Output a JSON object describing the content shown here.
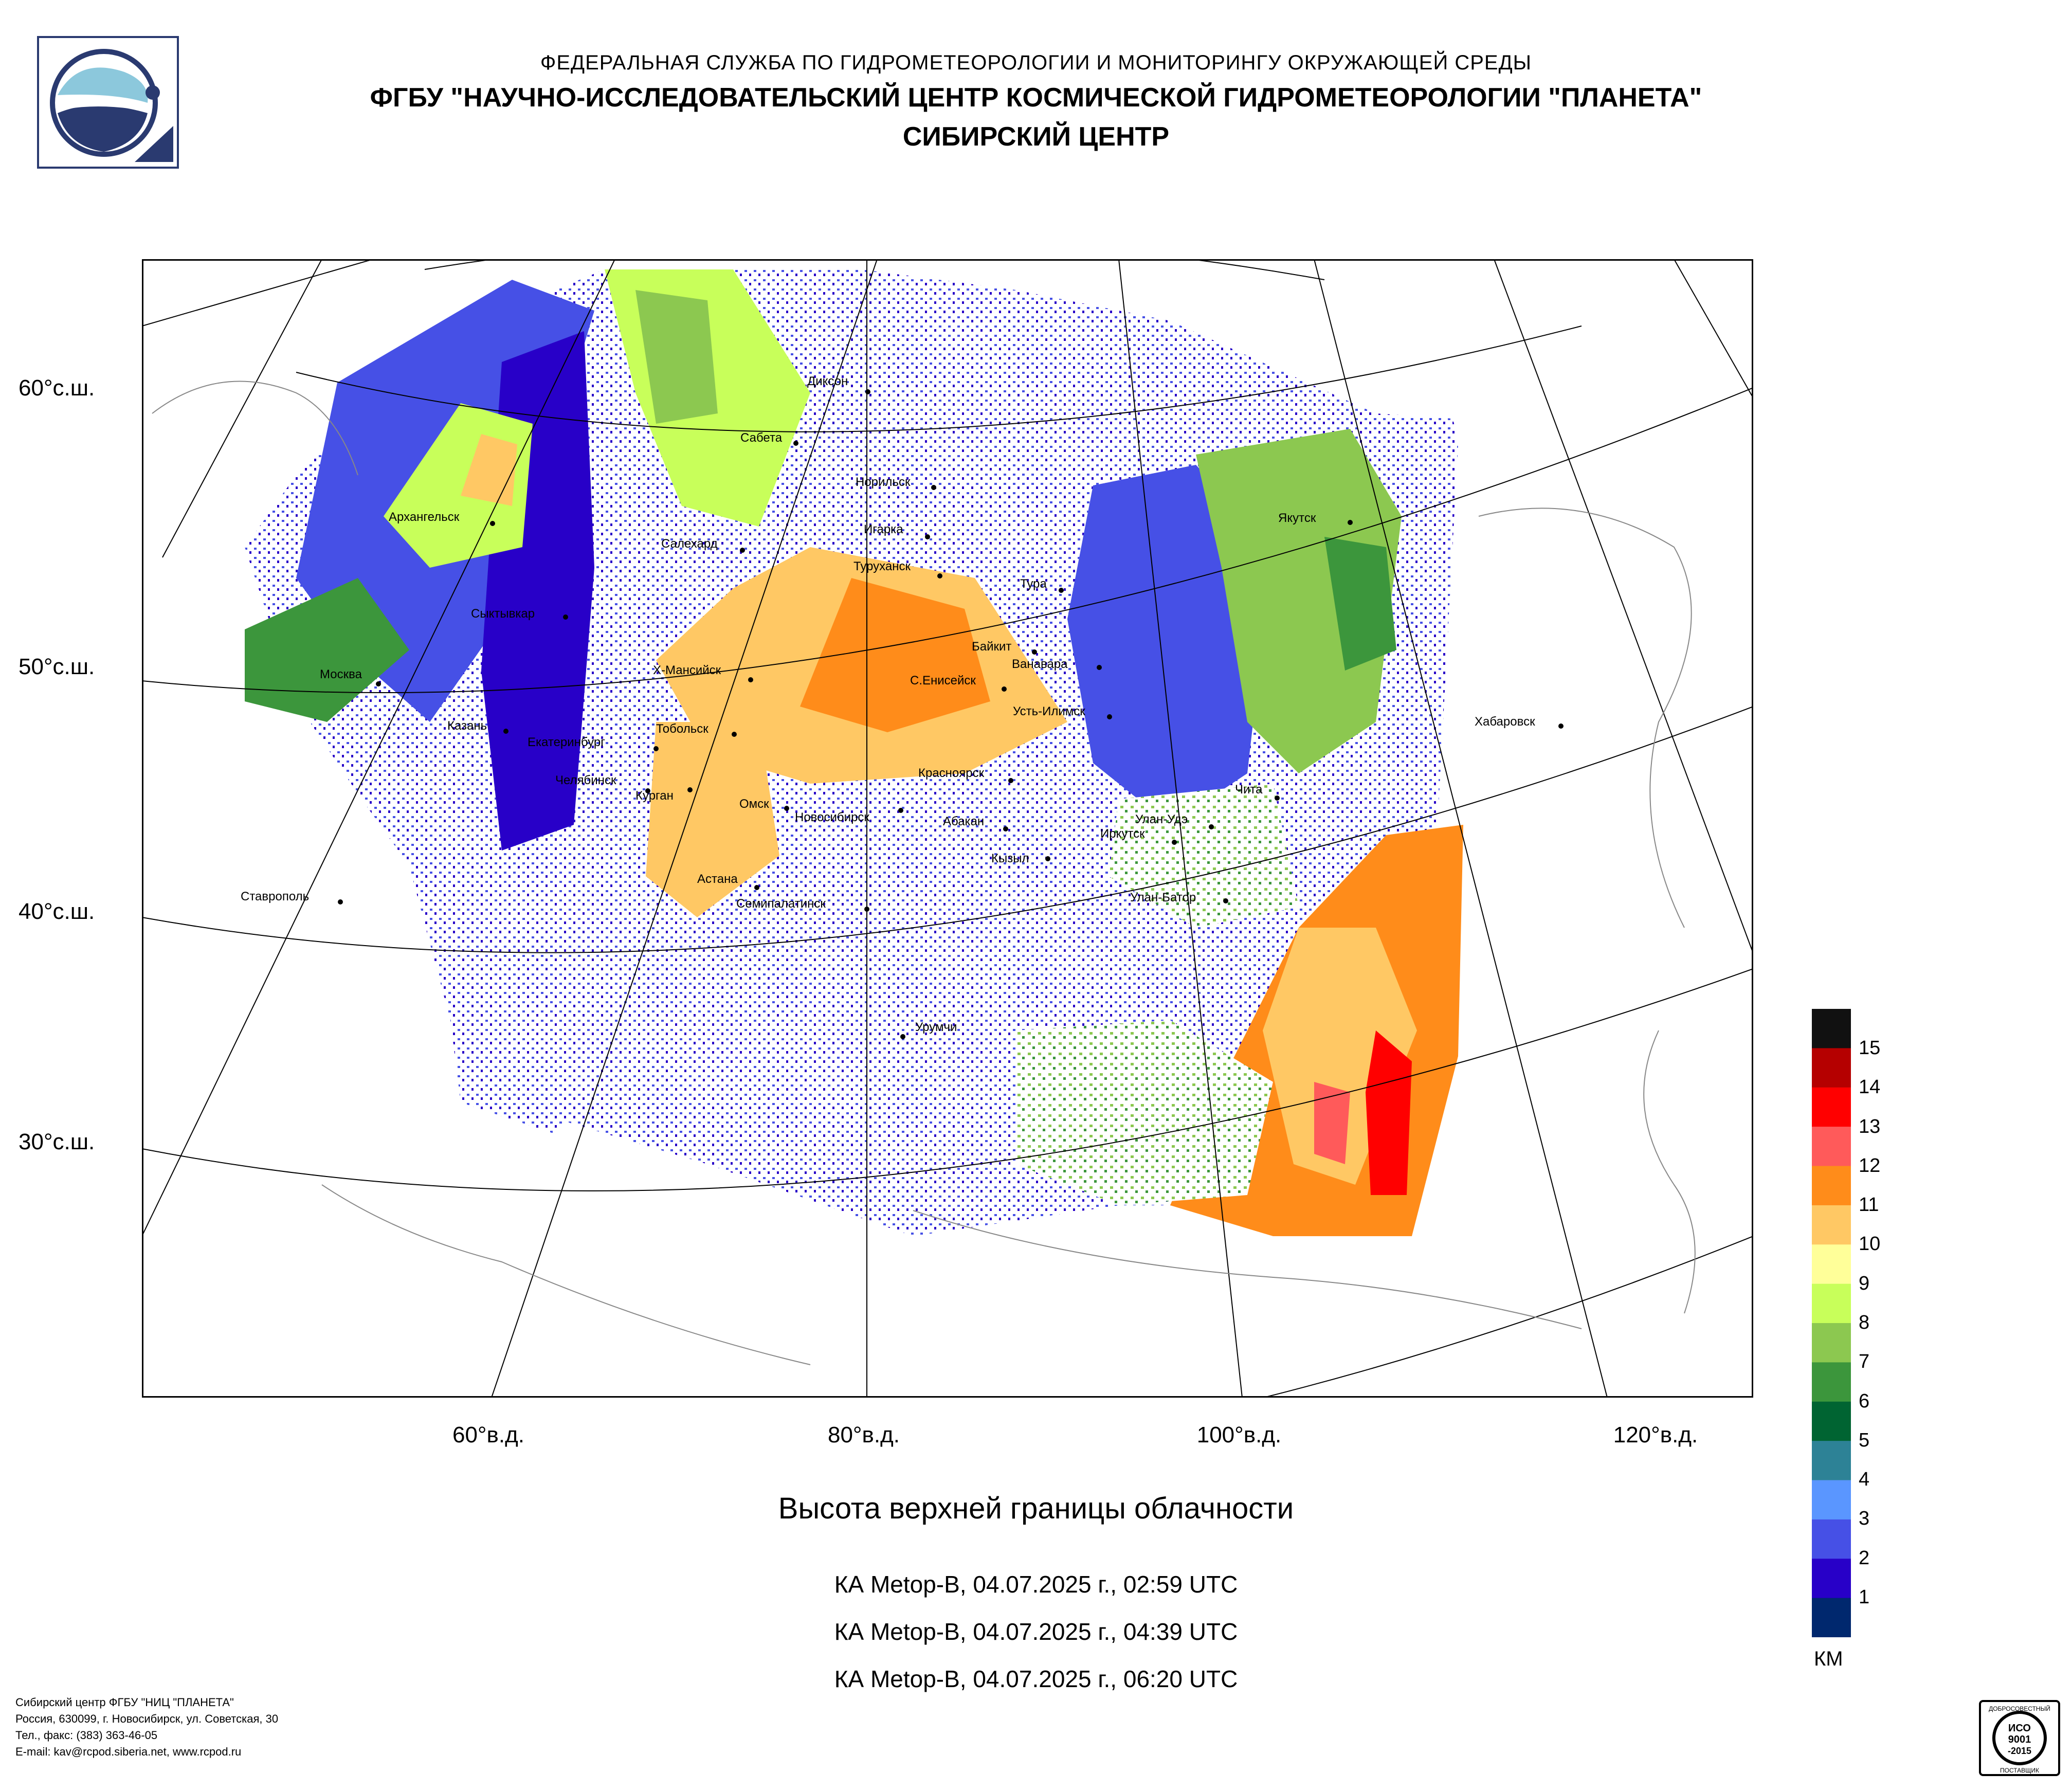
{
  "header": {
    "line1": "ФЕДЕРАЛЬНАЯ СЛУЖБА ПО ГИДРОМЕТЕОРОЛОГИИ И МОНИТОРИНГУ ОКРУЖАЮЩЕЙ СРЕДЫ",
    "line2": "ФГБУ \"НАУЧНО-ИССЛЕДОВАТЕЛЬСКИЙ ЦЕНТР КОСМИЧЕСКОЙ ГИДРОМЕТЕОРОЛОГИИ \"ПЛАНЕТА\"",
    "line3": "СИБИРСКИЙ ЦЕНТР"
  },
  "map": {
    "lat_labels": [
      "60°с.ш.",
      "50°с.ш.",
      "40°с.ш.",
      "30°с.ш."
    ],
    "lon_labels": [
      "60°в.д.",
      "80°в.д.",
      "100°в.д.",
      "120°в.д."
    ],
    "cities": [
      "Диксон",
      "Сабета",
      "Норильск",
      "Архангельск",
      "Игарка",
      "Салехард",
      "Туруханск",
      "Якутск",
      "Тура",
      "Сыктывкар",
      "Байкит",
      "Ванавара",
      "Москва",
      "Х-Мансийск",
      "С.Енисейск",
      "Усть-Илимск",
      "Казань",
      "Тобольск",
      "Хабаровск",
      "Екатеринбург",
      "Красноярск",
      "Челябинск",
      "Курган",
      "Омск",
      "Чита",
      "Новосибирск",
      "Абакан",
      "Улан-Удэ",
      "Иркутск",
      "Кызыл",
      "Ставрополь",
      "Астана",
      "Улан-Батор",
      "Семипалатинск",
      "Урумчи"
    ]
  },
  "caption": {
    "title": "Высота верхней границы облачности",
    "passes": [
      "КА Metop-B, 04.07.2025 г., 02:59 UTC",
      "КА Metop-B, 04.07.2025 г., 04:39 UTC",
      "КА Metop-B, 04.07.2025 г., 06:20 UTC"
    ]
  },
  "legend": {
    "labels": [
      "15",
      "14",
      "13",
      "12",
      "11",
      "10",
      "9",
      "8",
      "7",
      "6",
      "5",
      "4",
      "3",
      "2",
      "1"
    ],
    "unit": "КМ",
    "colors": [
      "#111111",
      "#b50000",
      "#ff0000",
      "#ff5a5a",
      "#ff8c1a",
      "#ffc864",
      "#ffff99",
      "#c8ff5a",
      "#8cc850",
      "#3c963c",
      "#006432",
      "#2d8296",
      "#5a96ff",
      "#4650e6",
      "#2800c8",
      "#00286e"
    ]
  },
  "footer": [
    "Сибирский центр ФГБУ \"НИЦ \"ПЛАНЕТА\"",
    "Россия, 630099, г. Новосибирск, ул. Советская, 30",
    "Тел., факс: (383) 363-46-05",
    "E-mail: kav@rcpod.siberia.net, www.rcpod.ru"
  ],
  "cert": {
    "top": "ДОБРОСОВЕСТНЫЙ",
    "iso1": "ИСО",
    "iso2": "9001",
    "iso3": "-2015",
    "bottom": "ПОСТАВЩИК"
  }
}
